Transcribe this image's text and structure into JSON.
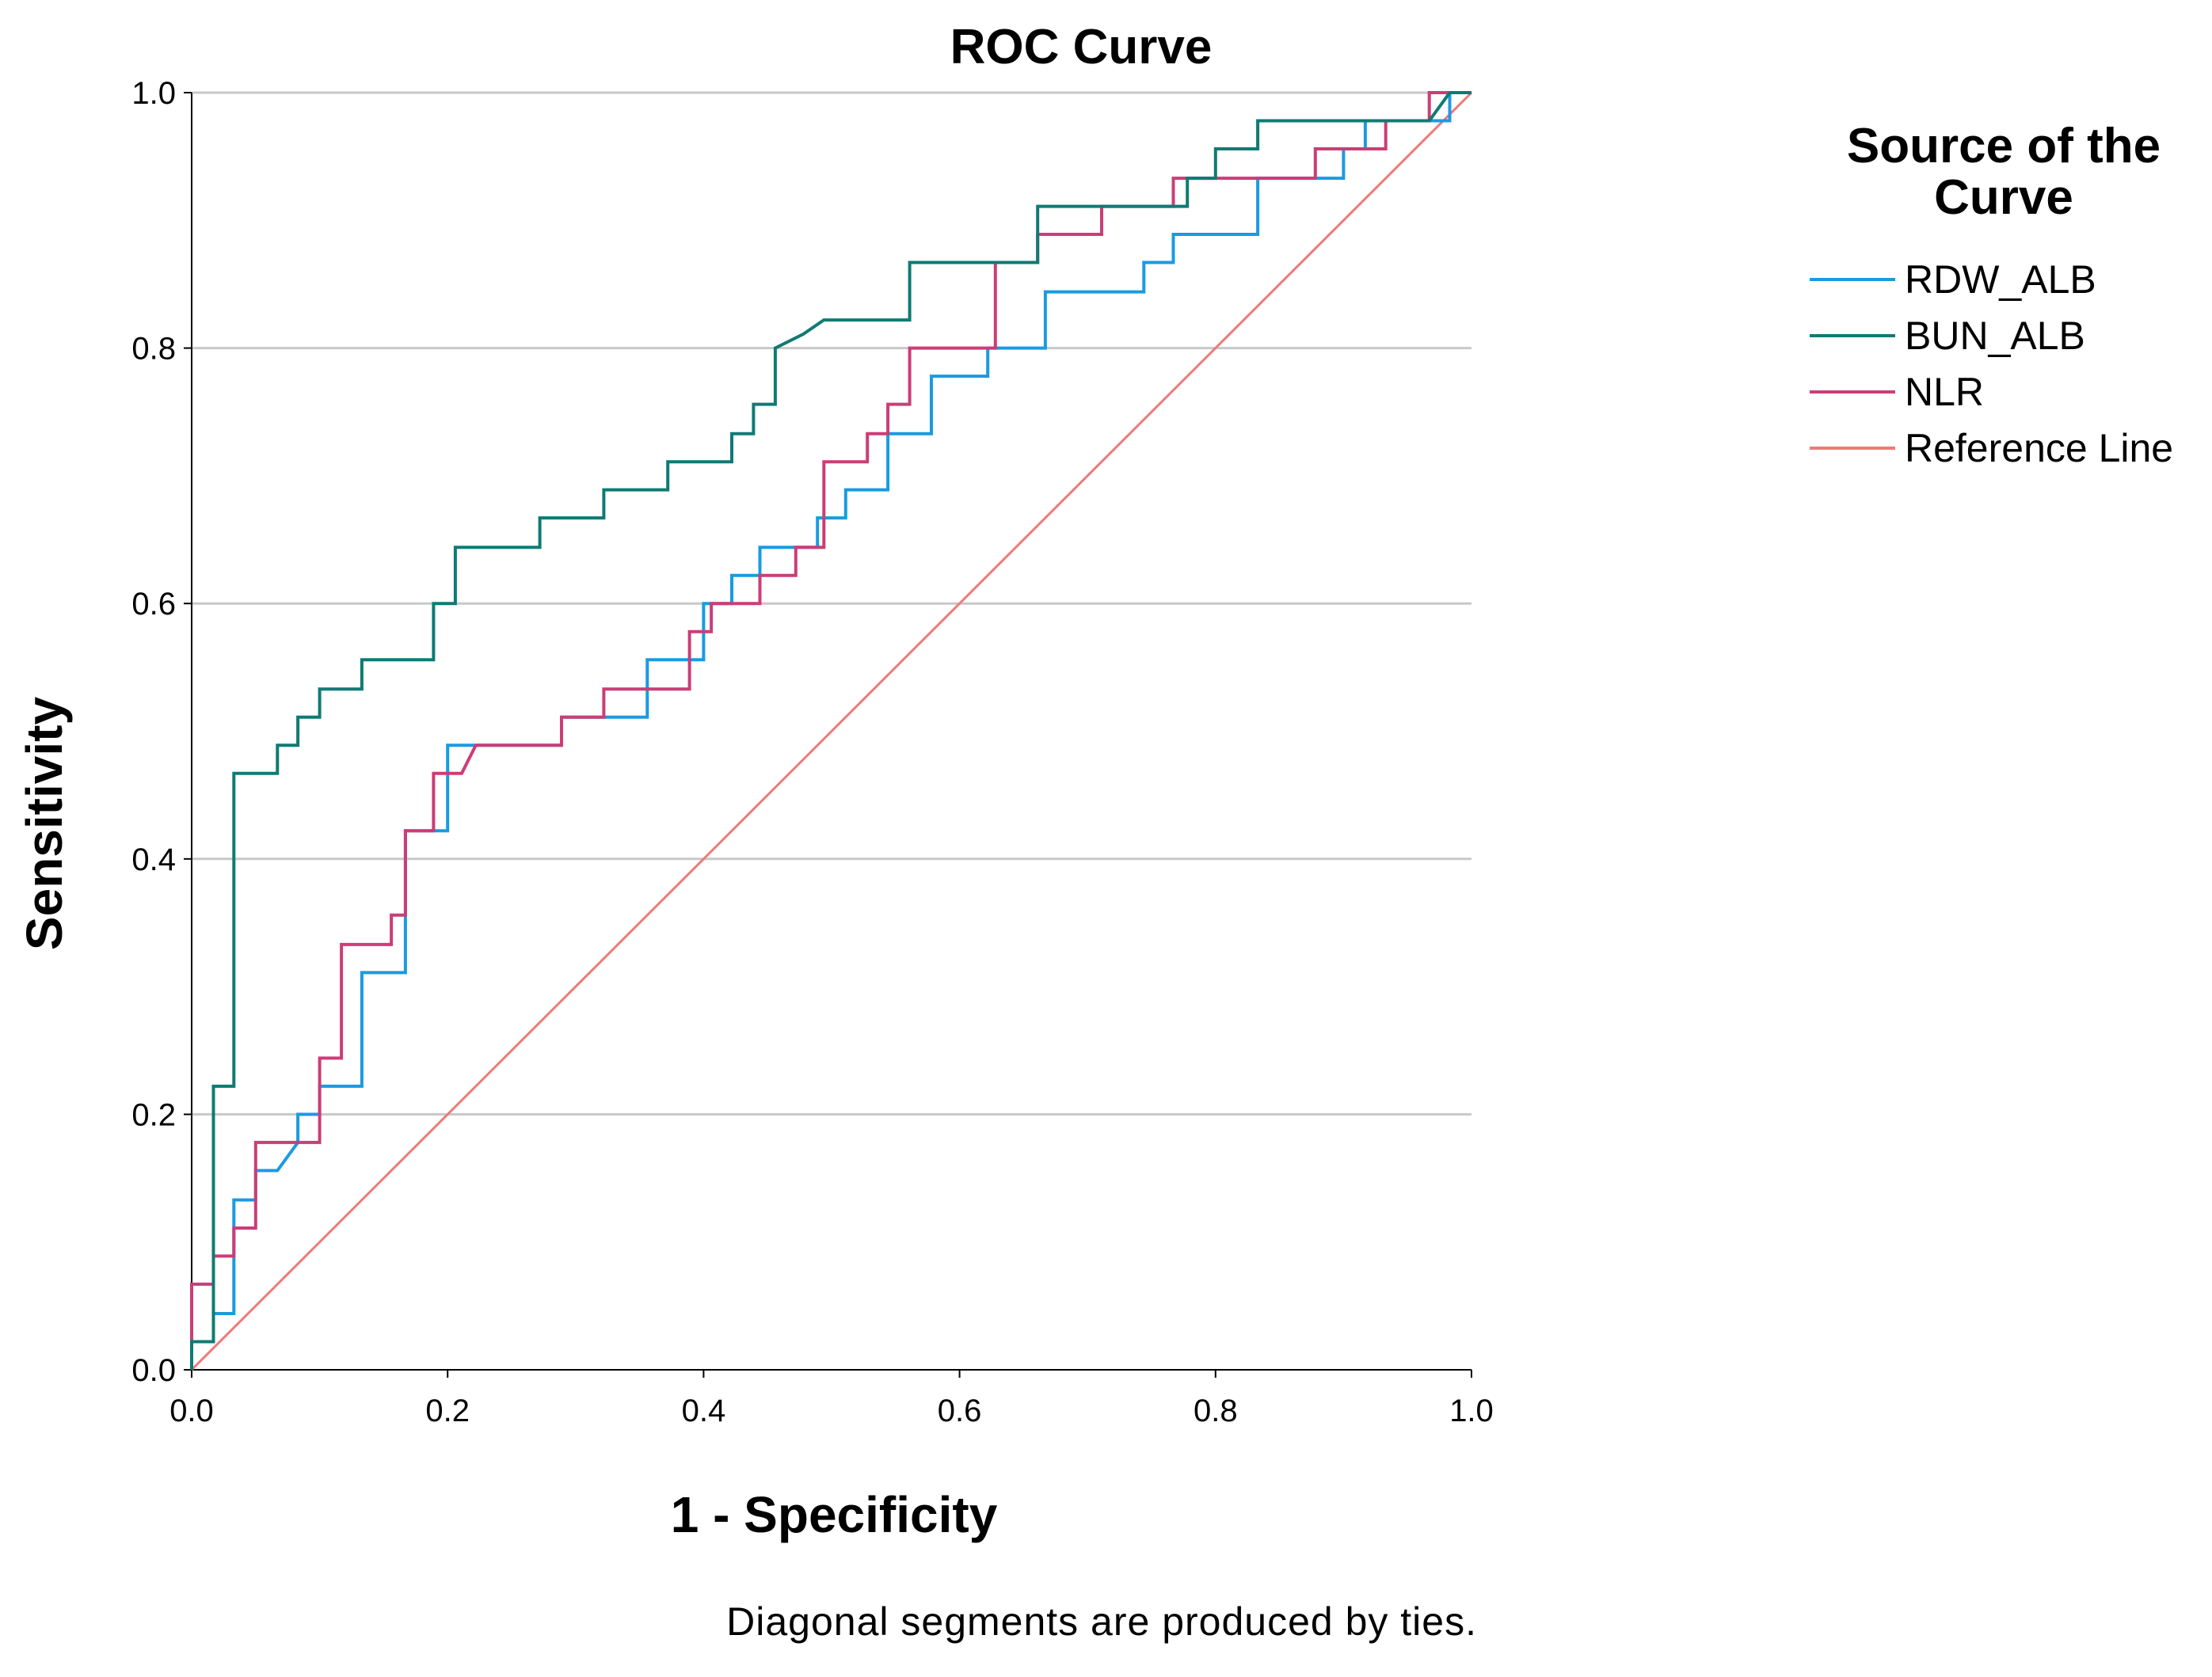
{
  "chart_data": {
    "type": "line",
    "title": "ROC Curve",
    "xlabel": "1 - Specificity",
    "ylabel": "Sensitivity",
    "xlim": [
      0,
      1
    ],
    "ylim": [
      0,
      1
    ],
    "xticks": [
      "0.0",
      "0.2",
      "0.4",
      "0.6",
      "0.8",
      "1.0"
    ],
    "yticks": [
      "0.0",
      "0.2",
      "0.4",
      "0.6",
      "0.8",
      "1.0"
    ],
    "gridlines": "horizontal",
    "legend_title": "Source of the Curve",
    "legend_position": "right",
    "footnote": "Diagonal segments are produced by ties.",
    "series": [
      {
        "name": "RDW_ALB",
        "color": "#1a9be0",
        "points": [
          [
            0,
            0
          ],
          [
            0,
            0.022
          ],
          [
            0.017,
            0.022
          ],
          [
            0.017,
            0.044
          ],
          [
            0.033,
            0.044
          ],
          [
            0.033,
            0.133
          ],
          [
            0.05,
            0.133
          ],
          [
            0.05,
            0.156
          ],
          [
            0.067,
            0.156
          ],
          [
            0.083,
            0.178
          ],
          [
            0.083,
            0.2
          ],
          [
            0.1,
            0.2
          ],
          [
            0.1,
            0.222
          ],
          [
            0.133,
            0.222
          ],
          [
            0.133,
            0.311
          ],
          [
            0.167,
            0.311
          ],
          [
            0.167,
            0.422
          ],
          [
            0.2,
            0.422
          ],
          [
            0.2,
            0.489
          ],
          [
            0.222,
            0.489
          ],
          [
            0.289,
            0.489
          ],
          [
            0.289,
            0.511
          ],
          [
            0.356,
            0.511
          ],
          [
            0.356,
            0.556
          ],
          [
            0.4,
            0.556
          ],
          [
            0.4,
            0.6
          ],
          [
            0.422,
            0.6
          ],
          [
            0.422,
            0.622
          ],
          [
            0.444,
            0.622
          ],
          [
            0.444,
            0.644
          ],
          [
            0.489,
            0.644
          ],
          [
            0.489,
            0.667
          ],
          [
            0.511,
            0.667
          ],
          [
            0.511,
            0.689
          ],
          [
            0.544,
            0.689
          ],
          [
            0.544,
            0.733
          ],
          [
            0.578,
            0.733
          ],
          [
            0.578,
            0.778
          ],
          [
            0.622,
            0.778
          ],
          [
            0.622,
            0.8
          ],
          [
            0.667,
            0.8
          ],
          [
            0.667,
            0.844
          ],
          [
            0.744,
            0.844
          ],
          [
            0.744,
            0.867
          ],
          [
            0.767,
            0.867
          ],
          [
            0.767,
            0.889
          ],
          [
            0.833,
            0.889
          ],
          [
            0.833,
            0.933
          ],
          [
            0.9,
            0.933
          ],
          [
            0.9,
            0.956
          ],
          [
            0.917,
            0.956
          ],
          [
            0.917,
            0.978
          ],
          [
            0.983,
            0.978
          ],
          [
            0.983,
            1.0
          ],
          [
            1.0,
            1.0
          ]
        ]
      },
      {
        "name": "BUN_ALB",
        "color": "#0e7b74",
        "points": [
          [
            0,
            0
          ],
          [
            0,
            0.022
          ],
          [
            0.017,
            0.022
          ],
          [
            0.017,
            0.222
          ],
          [
            0.033,
            0.222
          ],
          [
            0.033,
            0.467
          ],
          [
            0.067,
            0.467
          ],
          [
            0.067,
            0.489
          ],
          [
            0.083,
            0.489
          ],
          [
            0.083,
            0.511
          ],
          [
            0.1,
            0.511
          ],
          [
            0.1,
            0.533
          ],
          [
            0.133,
            0.533
          ],
          [
            0.133,
            0.556
          ],
          [
            0.189,
            0.556
          ],
          [
            0.189,
            0.6
          ],
          [
            0.206,
            0.6
          ],
          [
            0.206,
            0.644
          ],
          [
            0.272,
            0.644
          ],
          [
            0.272,
            0.667
          ],
          [
            0.322,
            0.667
          ],
          [
            0.322,
            0.689
          ],
          [
            0.372,
            0.689
          ],
          [
            0.372,
            0.711
          ],
          [
            0.422,
            0.711
          ],
          [
            0.422,
            0.733
          ],
          [
            0.439,
            0.733
          ],
          [
            0.439,
            0.756
          ],
          [
            0.456,
            0.756
          ],
          [
            0.456,
            0.8
          ],
          [
            0.478,
            0.811
          ],
          [
            0.494,
            0.822
          ],
          [
            0.561,
            0.822
          ],
          [
            0.561,
            0.867
          ],
          [
            0.661,
            0.867
          ],
          [
            0.661,
            0.911
          ],
          [
            0.778,
            0.911
          ],
          [
            0.778,
            0.933
          ],
          [
            0.8,
            0.933
          ],
          [
            0.8,
            0.956
          ],
          [
            0.833,
            0.956
          ],
          [
            0.833,
            0.978
          ],
          [
            0.967,
            0.978
          ],
          [
            0.983,
            1.0
          ],
          [
            1.0,
            1.0
          ]
        ]
      },
      {
        "name": "NLR",
        "color": "#cc3d77",
        "points": [
          [
            0,
            0
          ],
          [
            0,
            0.067
          ],
          [
            0.017,
            0.067
          ],
          [
            0.017,
            0.089
          ],
          [
            0.033,
            0.089
          ],
          [
            0.033,
            0.111
          ],
          [
            0.05,
            0.111
          ],
          [
            0.05,
            0.178
          ],
          [
            0.1,
            0.178
          ],
          [
            0.1,
            0.244
          ],
          [
            0.117,
            0.244
          ],
          [
            0.117,
            0.333
          ],
          [
            0.156,
            0.333
          ],
          [
            0.156,
            0.356
          ],
          [
            0.167,
            0.356
          ],
          [
            0.167,
            0.422
          ],
          [
            0.189,
            0.422
          ],
          [
            0.189,
            0.467
          ],
          [
            0.211,
            0.467
          ],
          [
            0.222,
            0.489
          ],
          [
            0.289,
            0.489
          ],
          [
            0.289,
            0.511
          ],
          [
            0.322,
            0.511
          ],
          [
            0.322,
            0.533
          ],
          [
            0.389,
            0.533
          ],
          [
            0.389,
            0.578
          ],
          [
            0.406,
            0.578
          ],
          [
            0.406,
            0.6
          ],
          [
            0.444,
            0.6
          ],
          [
            0.444,
            0.622
          ],
          [
            0.472,
            0.622
          ],
          [
            0.472,
            0.644
          ],
          [
            0.494,
            0.644
          ],
          [
            0.494,
            0.711
          ],
          [
            0.528,
            0.711
          ],
          [
            0.528,
            0.733
          ],
          [
            0.544,
            0.733
          ],
          [
            0.544,
            0.756
          ],
          [
            0.561,
            0.756
          ],
          [
            0.561,
            0.8
          ],
          [
            0.628,
            0.8
          ],
          [
            0.628,
            0.867
          ],
          [
            0.661,
            0.867
          ],
          [
            0.661,
            0.889
          ],
          [
            0.711,
            0.889
          ],
          [
            0.711,
            0.911
          ],
          [
            0.767,
            0.911
          ],
          [
            0.767,
            0.933
          ],
          [
            0.867,
            0.933
          ],
          [
            0.867,
            0.933
          ],
          [
            0.867,
            0.933
          ],
          [
            0.878,
            0.933
          ],
          [
            0.878,
            0.956
          ],
          [
            0.933,
            0.956
          ],
          [
            0.933,
            0.978
          ],
          [
            0.967,
            0.978
          ],
          [
            0.967,
            1.0
          ],
          [
            1.0,
            1.0
          ]
        ]
      },
      {
        "name": "Reference Line",
        "color": "#ef7a78",
        "points": [
          [
            0,
            0
          ],
          [
            1,
            1
          ]
        ]
      }
    ]
  }
}
